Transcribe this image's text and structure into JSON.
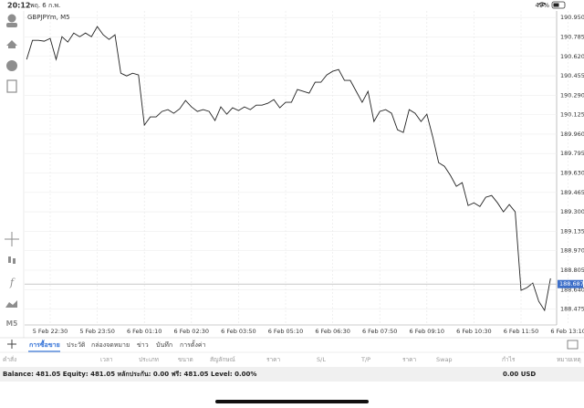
{
  "status_bar": {
    "time": "20:12",
    "date": "พฤ. 6 ก.พ.",
    "battery": "49%"
  },
  "toolbar": {
    "timeframe": "M5"
  },
  "chart_data": {
    "type": "line",
    "title": "GBPJPYm, M5",
    "categories": [
      null,
      null,
      null,
      null,
      "5 Feb 22:30",
      null,
      null,
      null,
      null,
      null,
      null,
      null,
      "5 Feb 23:50",
      null,
      null,
      null,
      null,
      null,
      null,
      null,
      "6 Feb 01:10",
      null,
      null,
      null,
      null,
      null,
      null,
      null,
      "6 Feb 02:30",
      null,
      null,
      null,
      null,
      null,
      null,
      null,
      "6 Feb 03:50",
      null,
      null,
      null,
      null,
      null,
      null,
      null,
      "6 Feb 05:10",
      null,
      null,
      null,
      null,
      null,
      null,
      null,
      "6 Feb 06:30",
      null,
      null,
      null,
      null,
      null,
      null,
      null,
      "6 Feb 07:50",
      null,
      null,
      null,
      null,
      null,
      null,
      null,
      "6 Feb 09:10",
      null,
      null,
      null,
      null,
      null,
      null,
      null,
      "6 Feb 10:30",
      null,
      null,
      null,
      null,
      null,
      null,
      null,
      "6 Feb 11:50",
      null,
      null,
      null,
      null,
      null,
      null,
      null,
      "6 Feb 13:10"
    ],
    "values": [
      190.594,
      190.756,
      190.756,
      190.749,
      190.772,
      190.594,
      190.787,
      190.741,
      190.818,
      190.787,
      190.818,
      190.787,
      190.873,
      190.803,
      190.764,
      190.803,
      190.477,
      190.454,
      190.477,
      190.462,
      190.036,
      190.106,
      190.106,
      190.152,
      190.168,
      190.137,
      190.175,
      190.245,
      190.191,
      190.152,
      190.168,
      190.152,
      190.075,
      190.191,
      190.129,
      190.183,
      190.16,
      190.191,
      190.168,
      190.206,
      190.206,
      190.222,
      190.253,
      190.183,
      190.23,
      190.23,
      190.338,
      190.323,
      190.307,
      190.4,
      190.4,
      190.462,
      190.493,
      190.508,
      190.416,
      190.416,
      190.323,
      190.23,
      190.323,
      190.067,
      190.152,
      190.168,
      190.137,
      189.997,
      189.974,
      190.168,
      190.137,
      190.067,
      190.129,
      189.935,
      189.718,
      189.687,
      189.61,
      189.517,
      189.548,
      189.354,
      189.377,
      189.346,
      189.424,
      189.439,
      189.377,
      189.3,
      189.362,
      189.3,
      188.634,
      188.657,
      188.696,
      188.541,
      188.463,
      188.735,
      null,
      null,
      null
    ],
    "color": "#222222",
    "current_price": 188.687,
    "current_price_color": "#3d6fc9",
    "ylim": [
      188.34,
      190.99
    ],
    "yticks": [
      {
        "value": 190.95,
        "label": "190.950"
      },
      190.785,
      {
        "value": 190.62,
        "label": "190.620"
      },
      190.455,
      {
        "value": 190.29,
        "label": "190.290"
      },
      190.125,
      {
        "value": 189.96,
        "label": "189.960"
      },
      189.795,
      {
        "value": 189.63,
        "label": "189.630"
      },
      189.465,
      {
        "value": 189.3,
        "label": "189.300"
      },
      189.135,
      {
        "value": 188.97,
        "label": "188.970"
      },
      188.805,
      {
        "value": 188.64,
        "label": "188.640"
      },
      188.475
    ],
    "grid": true
  },
  "tabs": [
    "การซื้อขาย",
    "ประวัติ",
    "กล่องจดหมาย",
    "ข่าว",
    "บันทึก",
    "การตั้งค่า"
  ],
  "table": {
    "columns": [
      "คำสั่ง",
      "เวลา",
      "ประเภท",
      "ขนาด",
      "สัญลักษณ์",
      "ราคา",
      "S/L",
      "T/P",
      "ราคา",
      "Swap",
      "กำไร",
      "หมายเหตุ"
    ]
  },
  "account": {
    "summary": "Balance: 481.05 Equity: 481.05 หลักประกัน: 0.00 ฟรี: 481.05 Level: 0.00%",
    "profit": "0.00  USD"
  }
}
